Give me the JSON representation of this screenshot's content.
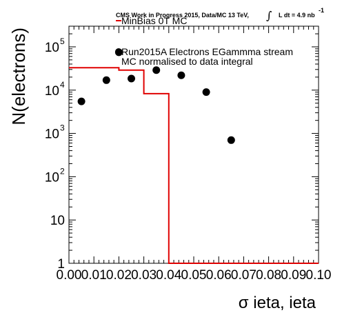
{
  "header": {
    "main": "CMS Work in Progress 2015, Data/MC 13 TeV,",
    "integral_symbol": "∫",
    "lumi_text": "L dt = 4.9 nb",
    "lumi_exponent": "-1"
  },
  "chart_data": {
    "type": "histogram+scatter",
    "xlabel": "σ ieta, ieta",
    "ylabel": "N(electrons)",
    "xlim": [
      0.0,
      0.1
    ],
    "ylim": [
      1,
      300000
    ],
    "yscale": "log",
    "x_ticks": [
      "0.00",
      "0.01",
      "0.02",
      "0.03",
      "0.04",
      "0.05",
      "0.06",
      "0.07",
      "0.08",
      "0.09",
      "0.10"
    ],
    "y_ticks": [
      {
        "value": 1,
        "base": "1",
        "exp": ""
      },
      {
        "value": 10,
        "base": "10",
        "exp": ""
      },
      {
        "value": 100,
        "base": "10",
        "exp": "2"
      },
      {
        "value": 1000,
        "base": "10",
        "exp": "3"
      },
      {
        "value": 10000,
        "base": "10",
        "exp": "4"
      },
      {
        "value": 100000,
        "base": "10",
        "exp": "5"
      }
    ],
    "mc_histogram": {
      "name": "MinBias 0T MC",
      "color": "#e00000",
      "edges": [
        0.0,
        0.01,
        0.02,
        0.03,
        0.04,
        0.05,
        0.06,
        0.07,
        0.08,
        0.09,
        0.1
      ],
      "values": [
        33000,
        33000,
        29000,
        8300,
        1,
        1,
        1,
        1,
        1,
        1
      ]
    },
    "data_points": {
      "name": "Run2015A Electrons EGammma stream",
      "color": "#000000",
      "x": [
        0.005,
        0.015,
        0.02,
        0.025,
        0.035,
        0.045,
        0.055,
        0.065
      ],
      "y": [
        5500,
        17000,
        75000,
        18500,
        29000,
        22000,
        9000,
        700
      ]
    },
    "legend": {
      "placement": "top-center",
      "entries": [
        "MinBias 0T MC",
        "Run2015A Electrons EGammma stream"
      ],
      "note": "MC normalised to data integral"
    },
    "grid": false
  }
}
